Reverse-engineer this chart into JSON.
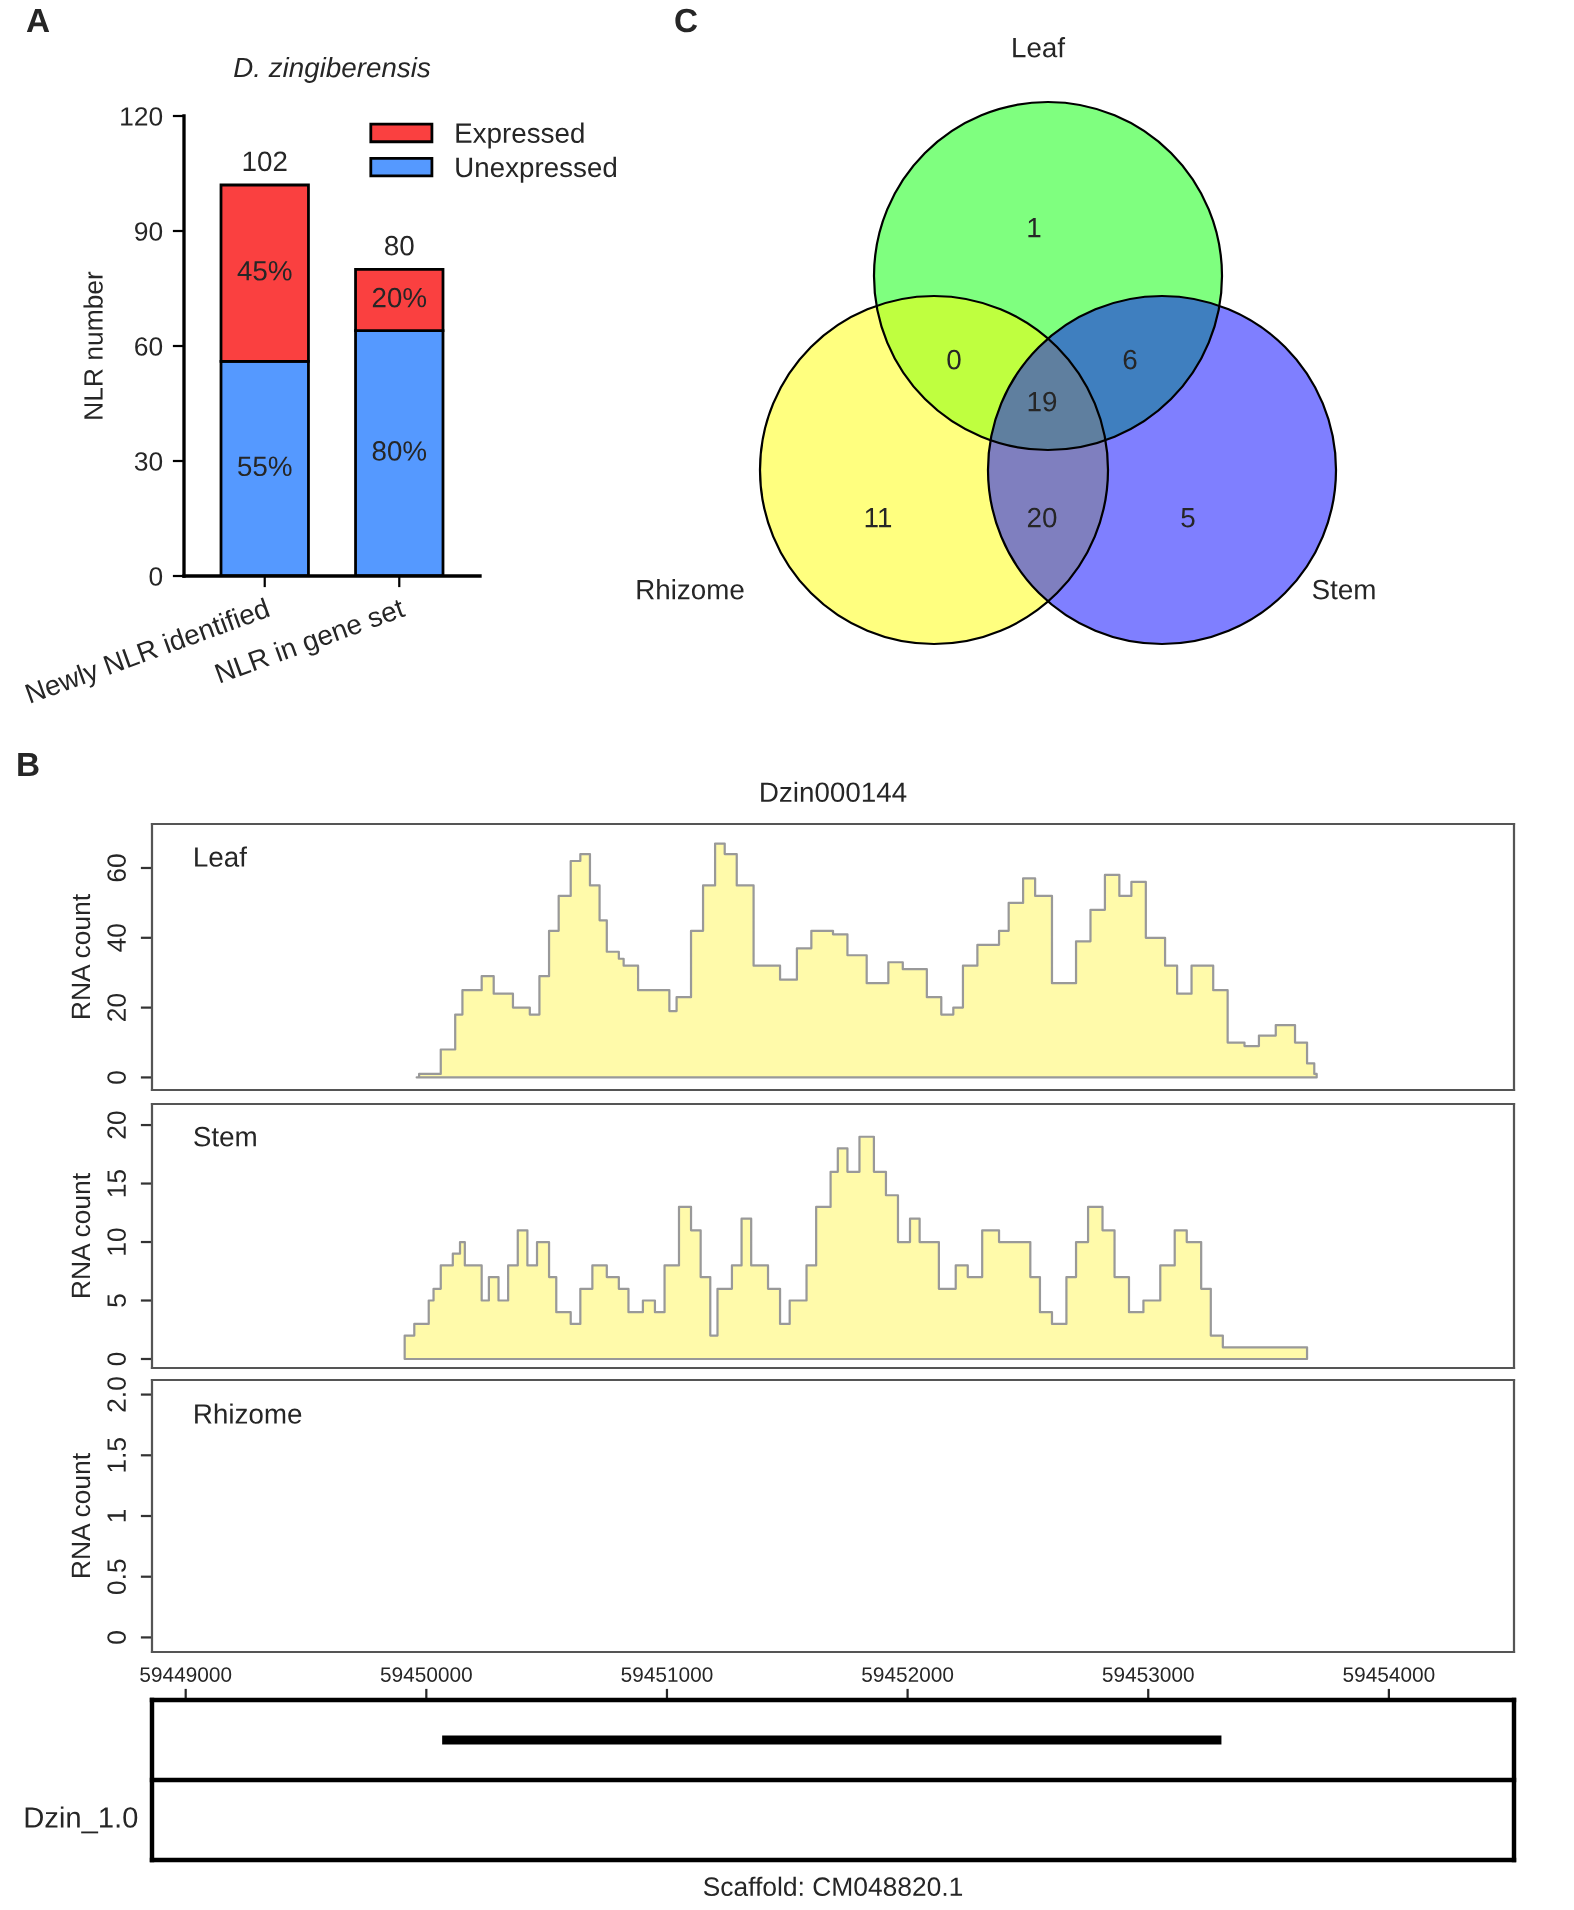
{
  "chart_data": [
    {
      "type": "bar",
      "title": "D. zingiberensis",
      "ylabel": "NLR number",
      "annotations": [
        "A",
        "55%",
        "80%",
        "45%",
        "20%"
      ],
      "categories": [
        "Newly NLR identified",
        "NLR in gene set"
      ],
      "stacked": true,
      "legend": "top right",
      "ylim": [
        0,
        120
      ],
      "yticks": [
        0,
        30,
        60,
        90,
        120
      ],
      "totals": [
        "102",
        "80"
      ],
      "series": [
        {
          "name": "Unexpressed",
          "color": "#5599ff",
          "values": [
            56,
            64
          ]
        },
        {
          "name": "Expressed",
          "color": "#fa4040",
          "values": [
            46,
            16
          ]
        }
      ]
    },
    {
      "type": "other",
      "annotations": [
        "C",
        "1",
        "11",
        "5",
        "0",
        "6",
        "20",
        "19"
      ],
      "categories": [
        "Leaf",
        "Rhizome",
        "Stem"
      ],
      "colors": [
        "#00ff00",
        "#ffff00",
        "#0000ff"
      ]
    },
    {
      "type": "area",
      "title": "Dzin000144",
      "ylabel": "RNA count",
      "annotations": [
        "B"
      ],
      "xlim": [
        59448860,
        59454520
      ],
      "ylim": [
        -3.6,
        72.6
      ],
      "yticks": [
        0,
        20,
        40,
        60
      ],
      "tick_labels": "y",
      "series": [
        {
          "name": "Leaf",
          "color": "#fffaaa",
          "x": [
            59449960,
            59449970,
            59450060,
            59450120,
            59450150,
            59450230,
            59450280,
            59450360,
            59450430,
            59450470,
            59450510,
            59450550,
            59450600,
            59450640,
            59450680,
            59450720,
            59450750,
            59450800,
            59450820,
            59450880,
            59451010,
            59451040,
            59451100,
            59451150,
            59451200,
            59451240,
            59451290,
            59451360,
            59451470,
            59451540,
            59451600,
            59451690,
            59451750,
            59451830,
            59451920,
            59451980,
            59452080,
            59452140,
            59452190,
            59452230,
            59452290,
            59452380,
            59452420,
            59452480,
            59452530,
            59452600,
            59452700,
            59452760,
            59452820,
            59452880,
            59452930,
            59452990,
            59453070,
            59453120,
            59453180,
            59453270,
            59453330,
            59453400,
            59453460,
            59453530,
            59453610,
            59453660,
            59453690,
            59453700
          ],
          "values": [
            0,
            1,
            8,
            18,
            25,
            29,
            24,
            20,
            18,
            29,
            42,
            52,
            62,
            64,
            55,
            45,
            36,
            34,
            32,
            25,
            19,
            23,
            42,
            55,
            67,
            64,
            55,
            32,
            28,
            37,
            42,
            41,
            35,
            27,
            33,
            31,
            23,
            18,
            20,
            32,
            38,
            42,
            50,
            57,
            52,
            27,
            39,
            48,
            58,
            52,
            56,
            40,
            32,
            24,
            32,
            25,
            10,
            9,
            12,
            15,
            10,
            4,
            1,
            0
          ]
        }
      ]
    },
    {
      "type": "area",
      "ylabel": "RNA count",
      "xlim": [
        59448860,
        59454520
      ],
      "ylim": [
        -0.77,
        21.8
      ],
      "yticks": [
        0,
        5,
        10,
        15,
        20
      ],
      "tick_labels": "y",
      "series": [
        {
          "name": "Stem",
          "color": "#fffaaa",
          "x": [
            59449910,
            59449950,
            59450010,
            59450030,
            59450060,
            59450110,
            59450140,
            59450160,
            59450210,
            59450230,
            59450260,
            59450300,
            59450340,
            59450380,
            59450420,
            59450460,
            59450510,
            59450540,
            59450600,
            59450640,
            59450690,
            59450750,
            59450800,
            59450840,
            59450900,
            59450950,
            59450990,
            59451050,
            59451100,
            59451140,
            59451180,
            59451210,
            59451270,
            59451310,
            59451350,
            59451420,
            59451470,
            59451510,
            59451580,
            59451620,
            59451680,
            59451710,
            59451750,
            59451800,
            59451830,
            59451860,
            59451910,
            59451960,
            59452010,
            59452050,
            59452080,
            59452130,
            59452200,
            59452250,
            59452310,
            59452380,
            59452440,
            59452510,
            59452550,
            59452600,
            59452660,
            59452700,
            59452750,
            59452810,
            59452860,
            59452920,
            59452980,
            59453050,
            59453110,
            59453160,
            59453220,
            59453260,
            59453310,
            59453660
          ],
          "values": [
            2,
            3,
            5,
            6,
            8,
            9,
            10,
            8,
            8,
            5,
            7,
            5,
            8,
            11,
            8,
            10,
            7,
            4,
            3,
            6,
            8,
            7,
            6,
            4,
            5,
            4,
            8,
            13,
            11,
            7,
            2,
            6,
            8,
            12,
            8,
            6,
            3,
            5,
            8,
            13,
            16,
            18,
            16,
            19,
            19,
            16,
            14,
            10,
            12,
            10,
            10,
            6,
            8,
            7,
            11,
            10,
            10,
            7,
            4,
            3,
            7,
            10,
            13,
            11,
            7,
            4,
            5,
            8,
            11,
            10,
            6,
            2,
            1,
            0
          ]
        }
      ]
    },
    {
      "type": "area",
      "ylabel": "RNA count",
      "ylim": [
        -0.12,
        2.12
      ],
      "yticks": [
        0,
        0.5,
        1,
        1.5,
        {
          "value": 2,
          "label": "2.0"
        }
      ],
      "tick_labels": "y",
      "series": [
        {
          "name": "Rhizome"
        }
      ]
    },
    {
      "type": "bar",
      "orientation": "horizontal",
      "xlabel": "Scaffold: CM048820.1",
      "annotations": [
        "Dzin_1.0"
      ],
      "categories": [
        null
      ],
      "base": [
        59450060
      ],
      "values": [
        3250
      ],
      "color": "#000000",
      "xlim": [
        59448860,
        59454520
      ],
      "xticks": [
        59449000,
        59450000,
        59451000,
        59452000,
        59453000,
        59454000
      ]
    }
  ]
}
